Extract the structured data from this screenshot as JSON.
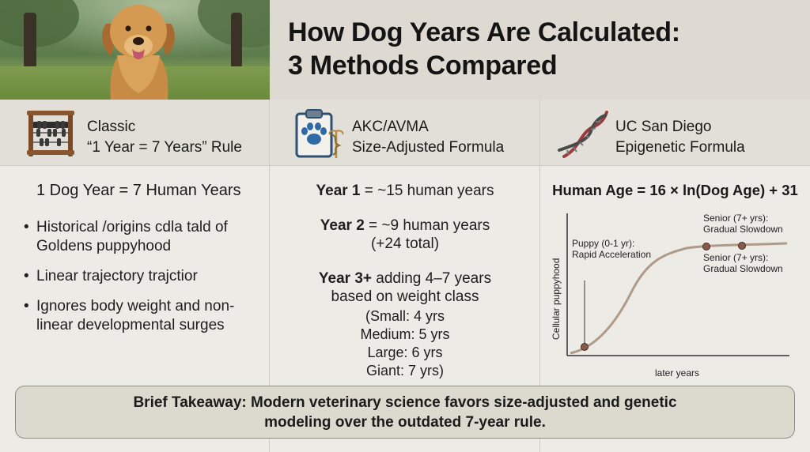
{
  "header": {
    "title_line1": "How Dog Years Are Calculated:",
    "title_line2": "3 Methods Compared"
  },
  "methods": [
    {
      "icon": "abacus-icon",
      "name_line1": "Classic",
      "name_line2": "“1 Year = 7 Years” Rule",
      "main_statement": "1 Dog Year = 7 Human Years",
      "bullets": [
        "Historical /origins cdla tald of Goldens puppyhood",
        "Linear trajectory trajctior",
        "Ignores body weight and non-linear developmental surges"
      ]
    },
    {
      "icon": "paw-medical-clipboard-icon",
      "name_line1": "AKC/AVMA",
      "name_line2": "Size-Adjusted Formula",
      "year1_label": "Year 1",
      "year1_text": " = ~15 human years",
      "year2_label": "Year 2",
      "year2_text": " = ~9 human years",
      "year2_note": "(+24 total)",
      "year3_label": "Year 3+",
      "year3_text": " adding 4–7 years",
      "year3_text2": "based on weight class",
      "weight_classes": [
        "(Small: 4 yrs",
        "Medium: 5 yrs",
        "Large: 6 yrs",
        "Giant: 7 yrs)"
      ]
    },
    {
      "icon": "dna-icon",
      "name_line1": "UC San Diego",
      "name_line2": "Epigenetic Formula",
      "formula": "Human Age = 16 × ln(Dog Age) + 31",
      "chart": {
        "ylabel": "Cellular puppyhood",
        "xlabel": "later years",
        "annotation_puppy_line1": "Puppy (0-1 yr):",
        "annotation_puppy_line2": "Rapid Acceleration",
        "annotation_senior_line1": "Senior (7+ yrs):",
        "annotation_senior_line2": "Gradual Slowdown",
        "curve_color": "#b09a88",
        "marker_color": "#8a5a4a"
      }
    }
  ],
  "takeaway": {
    "line1": "Brief Takeaway: Modern veterinary science favors size-adjusted and genetic",
    "line2": "modeling over the outdated 7-year rule."
  }
}
